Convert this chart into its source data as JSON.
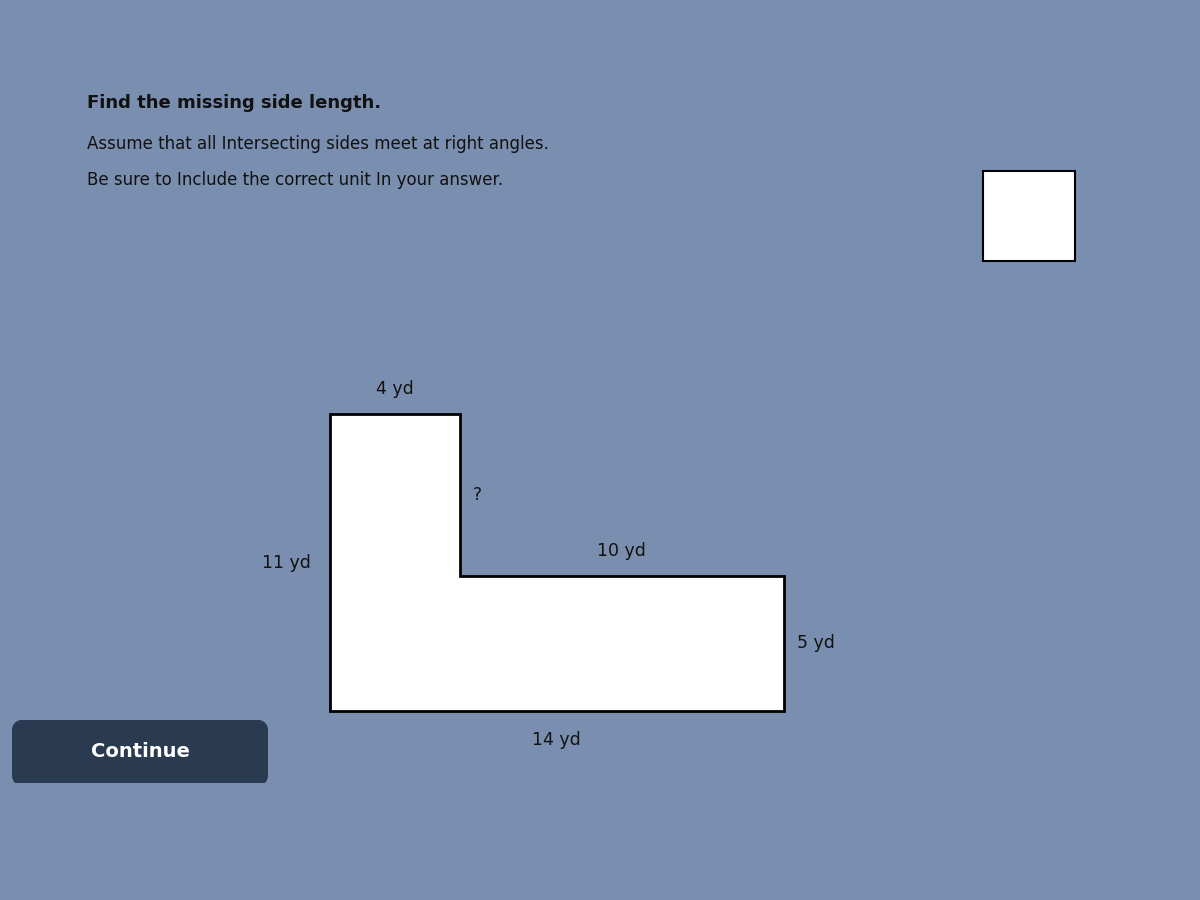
{
  "title_line1": "Find the missing side length.",
  "title_line2_a": "Assume that all Intersecting sides meet at right angles.",
  "title_line2_b": "Be sure to Include the correct unit In your answer.",
  "bg_color_outer": "#7a8faf",
  "bg_color_content": "#ccc8b8",
  "bg_color_bottom_bar": "#c8c4b4",
  "bg_color_dark_bar": "#4a5e78",
  "shape_face": "#ffffff",
  "shape_edge": "#000000",
  "labels": {
    "top": "4 yd",
    "question": "?",
    "step_horiz": "10 yd",
    "left": "11 yd",
    "bottom": "14 yd",
    "right": "5 yd"
  },
  "continue_button_text": "Continue",
  "continue_btn_color": "#2a3a50",
  "answer_box_color": "#ffffff",
  "answer_box_edge": "#000000"
}
